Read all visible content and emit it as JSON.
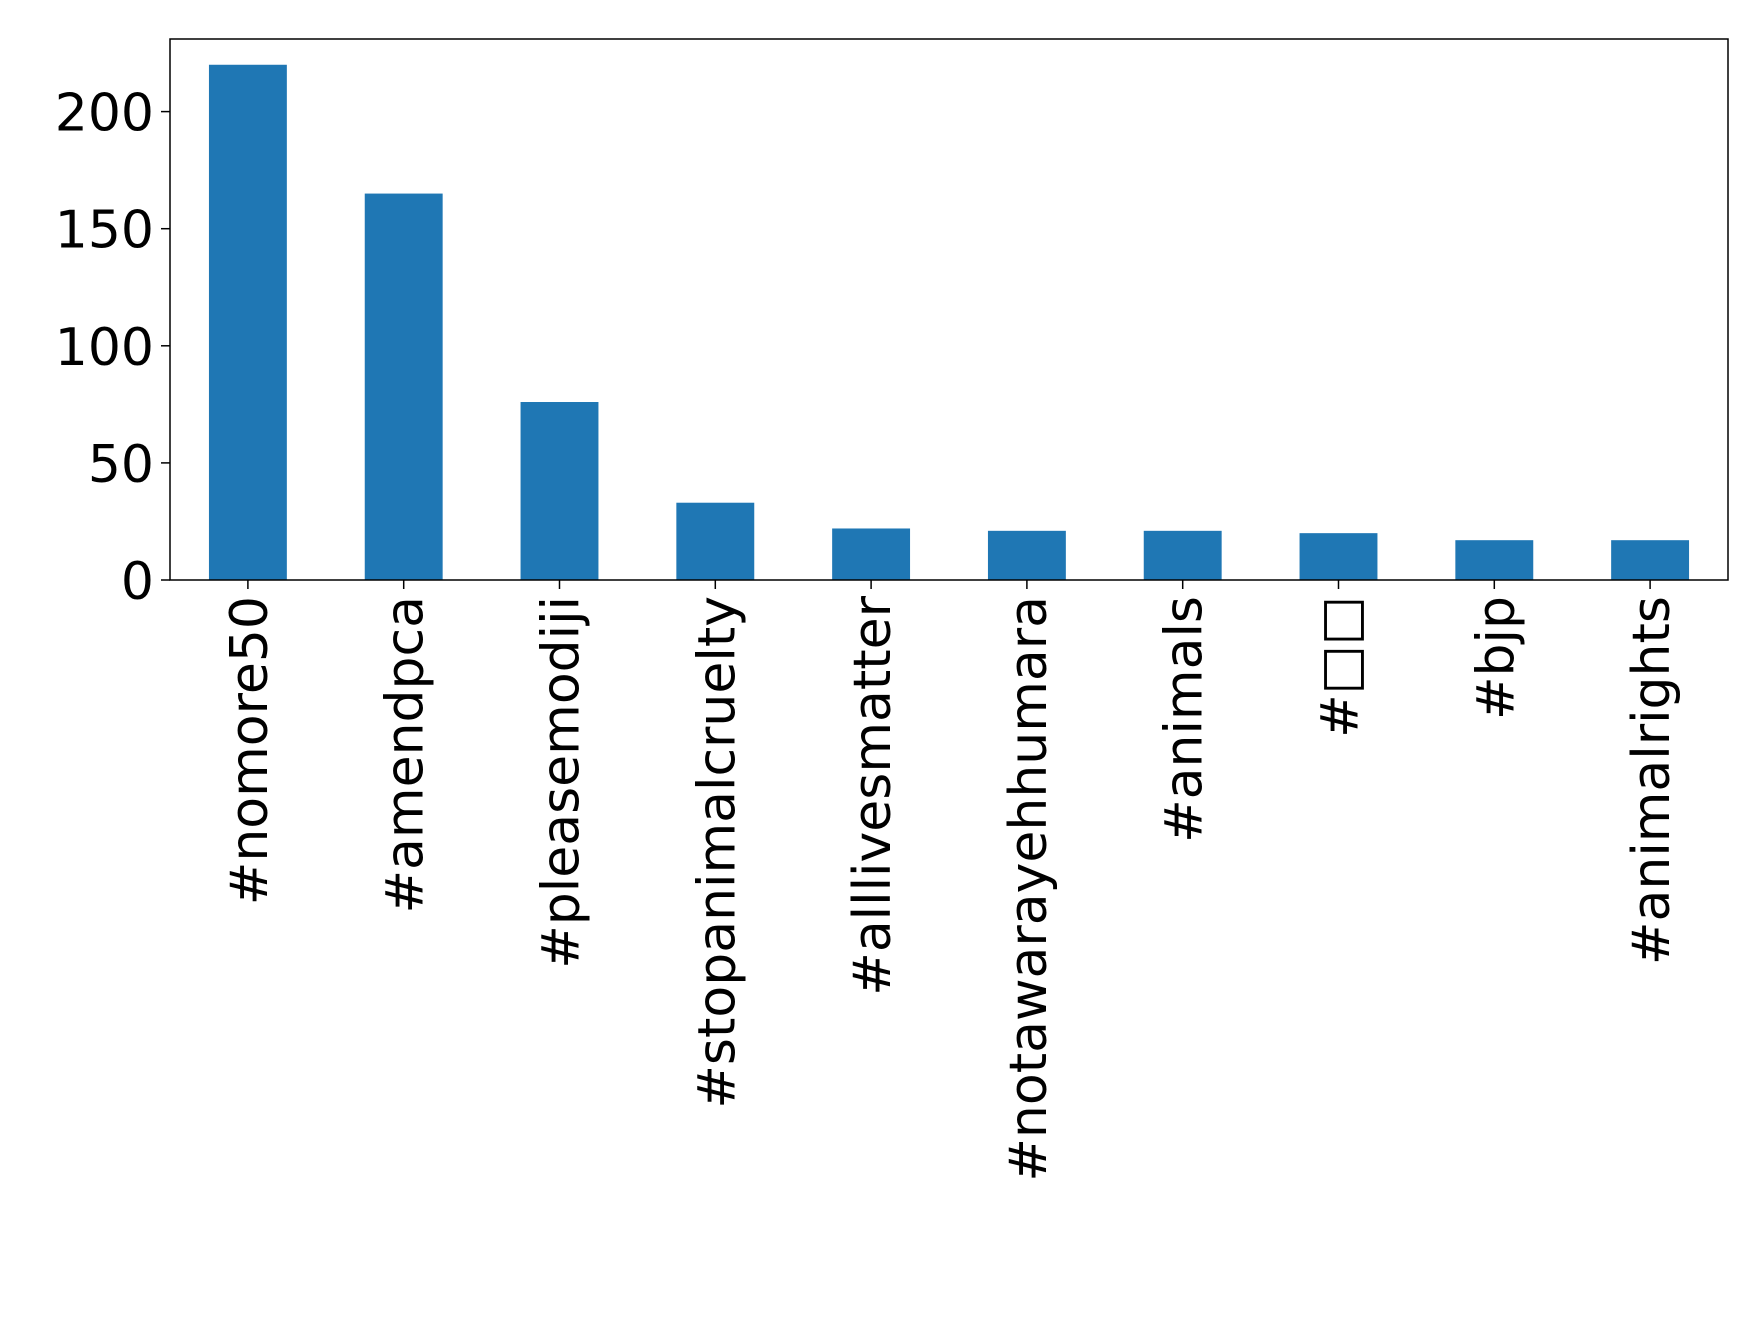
{
  "chart_data": {
    "type": "bar",
    "categories": [
      "#nomore50",
      "#amendpca",
      "#pleasemodiji",
      "#stopanimalcruelty",
      "#alllivesmatter",
      "#notawarayehhumara",
      "#animals",
      "#□□",
      "#bjp",
      "#animalrights"
    ],
    "values": [
      220,
      165,
      76,
      33,
      22,
      21,
      21,
      20,
      17,
      17
    ],
    "color": "#1f77b4",
    "ylim": [
      0,
      231
    ],
    "yticks": [
      0,
      50,
      100,
      150,
      200
    ],
    "grid": false
  }
}
